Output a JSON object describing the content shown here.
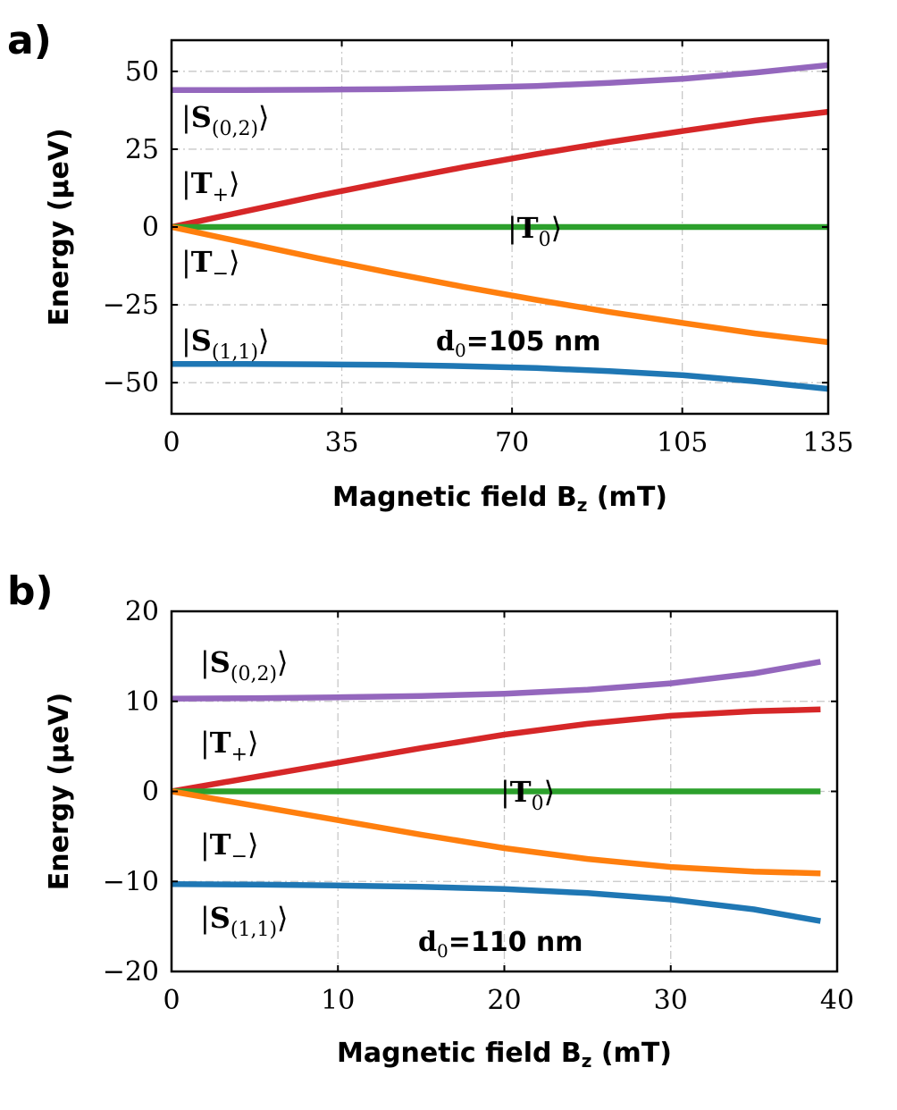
{
  "chart_data": [
    {
      "type": "line",
      "panel": "a)",
      "xlabel": "Magnetic field B",
      "xlabel_sub": "z",
      "xlabel_unit": "(mT)",
      "ylabel": "Energy (μeV)",
      "xlim": [
        0,
        135
      ],
      "ylim": [
        -60,
        60
      ],
      "xticks": [
        0,
        35,
        70,
        105,
        135
      ],
      "yticks": [
        50,
        25,
        0,
        -25,
        -50
      ],
      "ytick_labels": [
        "50",
        "25",
        "0",
        "−25",
        "−50"
      ],
      "grid": true,
      "annotation": {
        "prefix": "d",
        "sub": "0",
        "suffix": "=105 nm"
      },
      "series": [
        {
          "name": "S(0,2)",
          "ket": "S",
          "sub": "(0,2)",
          "color": "#9467bd",
          "x": [
            0,
            15,
            30,
            45,
            60,
            75,
            90,
            105,
            120,
            135
          ],
          "y": [
            44,
            44,
            44.1,
            44.3,
            44.7,
            45.3,
            46.3,
            47.6,
            49.6,
            52
          ]
        },
        {
          "name": "T+",
          "ket": "T",
          "sub": "+",
          "color": "#d62728",
          "x": [
            0,
            15,
            30,
            45,
            60,
            75,
            90,
            105,
            120,
            135
          ],
          "y": [
            0,
            5,
            10,
            14.7,
            19.2,
            23.4,
            27.3,
            30.8,
            34.2,
            37
          ]
        },
        {
          "name": "T0",
          "ket": "T",
          "sub": "0",
          "color": "#2ca02c",
          "x": [
            0,
            135
          ],
          "y": [
            0,
            0
          ]
        },
        {
          "name": "T-",
          "ket": "T",
          "sub": "−",
          "color": "#ff7f0e",
          "x": [
            0,
            15,
            30,
            45,
            60,
            75,
            90,
            105,
            120,
            135
          ],
          "y": [
            0,
            -5,
            -10,
            -14.7,
            -19.2,
            -23.4,
            -27.3,
            -30.8,
            -34.2,
            -37
          ]
        },
        {
          "name": "S(1,1)",
          "ket": "S",
          "sub": "(1,1)",
          "color": "#1f77b4",
          "x": [
            0,
            15,
            30,
            45,
            60,
            75,
            90,
            105,
            120,
            135
          ],
          "y": [
            -44,
            -44,
            -44.1,
            -44.3,
            -44.7,
            -45.3,
            -46.3,
            -47.6,
            -49.6,
            -52
          ]
        }
      ]
    },
    {
      "type": "line",
      "panel": "b)",
      "xlabel": "Magnetic field B",
      "xlabel_sub": "z",
      "xlabel_unit": "(mT)",
      "ylabel": "Energy (μeV)",
      "xlim": [
        0,
        40
      ],
      "ylim": [
        -20,
        20
      ],
      "xticks": [
        0,
        10,
        20,
        30,
        40
      ],
      "yticks": [
        20,
        10,
        0,
        -10,
        -20
      ],
      "ytick_labels": [
        "20",
        "10",
        "0",
        "−10",
        "−20"
      ],
      "grid": true,
      "annotation": {
        "prefix": "d",
        "sub": "0",
        "suffix": "=110 nm"
      },
      "series": [
        {
          "name": "S(0,2)",
          "ket": "S",
          "sub": "(0,2)",
          "color": "#9467bd",
          "x": [
            0,
            5,
            10,
            15,
            20,
            25,
            30,
            35,
            39
          ],
          "y": [
            10.3,
            10.35,
            10.45,
            10.6,
            10.85,
            11.3,
            12.0,
            13.1,
            14.4
          ]
        },
        {
          "name": "T+",
          "ket": "T",
          "sub": "+",
          "color": "#d62728",
          "x": [
            0,
            5,
            10,
            15,
            20,
            25,
            30,
            35,
            39
          ],
          "y": [
            0,
            1.6,
            3.2,
            4.8,
            6.3,
            7.5,
            8.4,
            8.9,
            9.1
          ]
        },
        {
          "name": "T0",
          "ket": "T",
          "sub": "0",
          "color": "#2ca02c",
          "x": [
            0,
            39
          ],
          "y": [
            0,
            0
          ]
        },
        {
          "name": "T-",
          "ket": "T",
          "sub": "−",
          "color": "#ff7f0e",
          "x": [
            0,
            5,
            10,
            15,
            20,
            25,
            30,
            35,
            39
          ],
          "y": [
            0,
            -1.6,
            -3.2,
            -4.8,
            -6.3,
            -7.5,
            -8.4,
            -8.9,
            -9.1
          ]
        },
        {
          "name": "S(1,1)",
          "ket": "S",
          "sub": "(1,1)",
          "color": "#1f77b4",
          "x": [
            0,
            5,
            10,
            15,
            20,
            25,
            30,
            35,
            39
          ],
          "y": [
            -10.3,
            -10.35,
            -10.45,
            -10.6,
            -10.85,
            -11.3,
            -12.0,
            -13.1,
            -14.4
          ]
        }
      ]
    }
  ]
}
